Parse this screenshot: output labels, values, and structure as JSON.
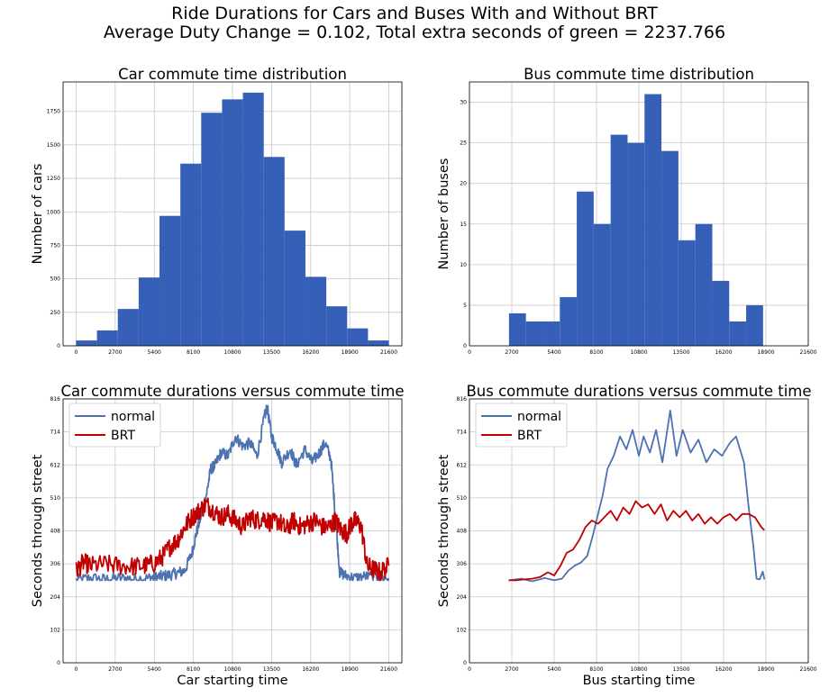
{
  "figure": {
    "title_line1": "Ride Durations for Cars and Buses With and Without BRT",
    "title_line2": "Average Duty Change = 0.102, Total extra seconds of green = 2237.766"
  },
  "colors": {
    "bars": "#3660b8",
    "normal": "#4c72b0",
    "brt": "#c00000"
  },
  "chart_data": [
    {
      "id": "car-hist",
      "type": "bar",
      "title": "Car commute time distribution",
      "xlabel": "",
      "ylabel": "Number of cars",
      "xlim": [
        -900,
        22500
      ],
      "ylim": [
        0,
        1970
      ],
      "xticks": [
        0,
        2700,
        5400,
        8100,
        10800,
        13500,
        16200,
        18900,
        21600
      ],
      "yticks": [
        0,
        250,
        500,
        750,
        1000,
        1250,
        1500,
        1750
      ],
      "bin_edges": [
        0,
        1440,
        2880,
        4320,
        5760,
        7200,
        8640,
        10080,
        11520,
        12960,
        14400,
        15840,
        17280,
        18720,
        20160,
        21600
      ],
      "values": [
        40,
        115,
        275,
        510,
        970,
        1360,
        1740,
        1840,
        1890,
        1410,
        860,
        515,
        295,
        130,
        40
      ]
    },
    {
      "id": "bus-hist",
      "type": "bar",
      "title": "Bus commute time distribution",
      "xlabel": "",
      "ylabel": "Number of buses",
      "xlim": [
        0,
        21600
      ],
      "ylim": [
        0,
        32.5
      ],
      "xticks": [
        0,
        2700,
        5400,
        8100,
        10800,
        13500,
        16200,
        18900,
        21600
      ],
      "yticks": [
        0,
        5,
        10,
        15,
        20,
        25,
        30
      ],
      "bin_edges": [
        2520,
        3600,
        4680,
        5760,
        6840,
        7920,
        9000,
        10080,
        11160,
        12240,
        13320,
        14400,
        15480,
        16560,
        17640,
        18720
      ],
      "values": [
        4,
        3,
        3,
        6,
        19,
        15,
        26,
        25,
        31,
        24,
        13,
        15,
        8,
        3,
        5
      ]
    },
    {
      "id": "car-line",
      "type": "line",
      "title": "Car commute durations versus commute time",
      "xlabel": "Car starting time",
      "ylabel": "Seconds through street",
      "xlim": [
        -900,
        22500
      ],
      "ylim": [
        0,
        816
      ],
      "xticks": [
        0,
        2700,
        5400,
        8100,
        10800,
        13500,
        16200,
        18900,
        21600
      ],
      "yticks": [
        0,
        102,
        204,
        306,
        408,
        510,
        612,
        714,
        816
      ],
      "legend": "upper-left",
      "series": [
        {
          "name": "normal",
          "x": [
            0,
            1000,
            2000,
            3000,
            4000,
            5000,
            5500,
            6000,
            6500,
            7000,
            7500,
            8000,
            8300,
            8600,
            9000,
            9300,
            9600,
            10000,
            10500,
            11000,
            11500,
            12000,
            12500,
            13000,
            13200,
            13500,
            13800,
            14200,
            14800,
            15200,
            15800,
            16300,
            16800,
            17200,
            17600,
            17900,
            18200,
            18600,
            19200,
            20000,
            21000,
            21600
          ],
          "y": [
            255,
            262,
            258,
            262,
            260,
            262,
            265,
            268,
            272,
            278,
            285,
            340,
            400,
            450,
            520,
            600,
            610,
            650,
            640,
            700,
            670,
            680,
            640,
            760,
            790,
            700,
            670,
            620,
            660,
            610,
            660,
            620,
            650,
            680,
            630,
            460,
            280,
            270,
            262,
            268,
            262,
            262
          ],
          "noise": 18
        },
        {
          "name": "BRT",
          "x": [
            0,
            500,
            1000,
            2000,
            3000,
            4000,
            4800,
            5500,
            6000,
            6500,
            7000,
            7500,
            8000,
            8500,
            9000,
            9500,
            10000,
            10500,
            11000,
            11500,
            12000,
            12500,
            13000,
            13500,
            14000,
            14500,
            15000,
            15500,
            16000,
            16500,
            17000,
            17500,
            17900,
            18300,
            18700,
            19000,
            19300,
            19700,
            20100,
            20500,
            21000,
            21600
          ],
          "y": [
            285,
            310,
            300,
            305,
            300,
            298,
            300,
            310,
            330,
            360,
            380,
            420,
            450,
            470,
            490,
            470,
            450,
            460,
            440,
            420,
            450,
            440,
            450,
            430,
            440,
            410,
            440,
            420,
            430,
            440,
            420,
            420,
            440,
            410,
            400,
            430,
            440,
            420,
            300,
            290,
            280,
            300
          ],
          "noise": 30
        }
      ]
    },
    {
      "id": "bus-line",
      "type": "line",
      "title": "Bus commute durations versus commute time",
      "xlabel": "Bus starting time",
      "ylabel": "Seconds through street",
      "xlim": [
        0,
        21600
      ],
      "ylim": [
        0,
        816
      ],
      "xticks": [
        0,
        2700,
        5400,
        8100,
        10800,
        13500,
        16200,
        18900,
        21600
      ],
      "yticks": [
        0,
        102,
        204,
        306,
        408,
        510,
        612,
        714,
        816
      ],
      "legend": "upper-left",
      "series": [
        {
          "name": "normal",
          "x": [
            2500,
            3300,
            4000,
            4800,
            5400,
            5900,
            6300,
            6700,
            7100,
            7500,
            7900,
            8200,
            8500,
            8800,
            9200,
            9600,
            10000,
            10400,
            10800,
            11100,
            11500,
            11900,
            12300,
            12800,
            13200,
            13600,
            14100,
            14600,
            15100,
            15600,
            16100,
            16600,
            17000,
            17500,
            17800,
            18100,
            18300,
            18500,
            18700,
            18800
          ],
          "y": [
            255,
            260,
            252,
            262,
            255,
            260,
            285,
            300,
            310,
            330,
            400,
            460,
            520,
            600,
            640,
            700,
            660,
            720,
            640,
            700,
            650,
            720,
            620,
            780,
            640,
            720,
            650,
            690,
            620,
            660,
            640,
            680,
            700,
            620,
            480,
            360,
            260,
            258,
            282,
            258
          ],
          "noise": 0
        },
        {
          "name": "BRT",
          "x": [
            2500,
            3000,
            3500,
            4000,
            4500,
            5000,
            5400,
            5800,
            6200,
            6600,
            7000,
            7400,
            7800,
            8200,
            8600,
            9000,
            9400,
            9800,
            10200,
            10600,
            11000,
            11400,
            11800,
            12200,
            12600,
            13000,
            13400,
            13800,
            14200,
            14600,
            15000,
            15400,
            15800,
            16200,
            16600,
            17000,
            17400,
            17800,
            18200,
            18600,
            18800
          ],
          "y": [
            255,
            255,
            258,
            260,
            265,
            280,
            270,
            300,
            340,
            350,
            380,
            420,
            440,
            430,
            450,
            470,
            440,
            480,
            460,
            500,
            480,
            490,
            460,
            490,
            440,
            470,
            450,
            470,
            440,
            460,
            430,
            450,
            430,
            450,
            460,
            440,
            460,
            460,
            450,
            420,
            410
          ],
          "noise": 0
        }
      ]
    }
  ]
}
